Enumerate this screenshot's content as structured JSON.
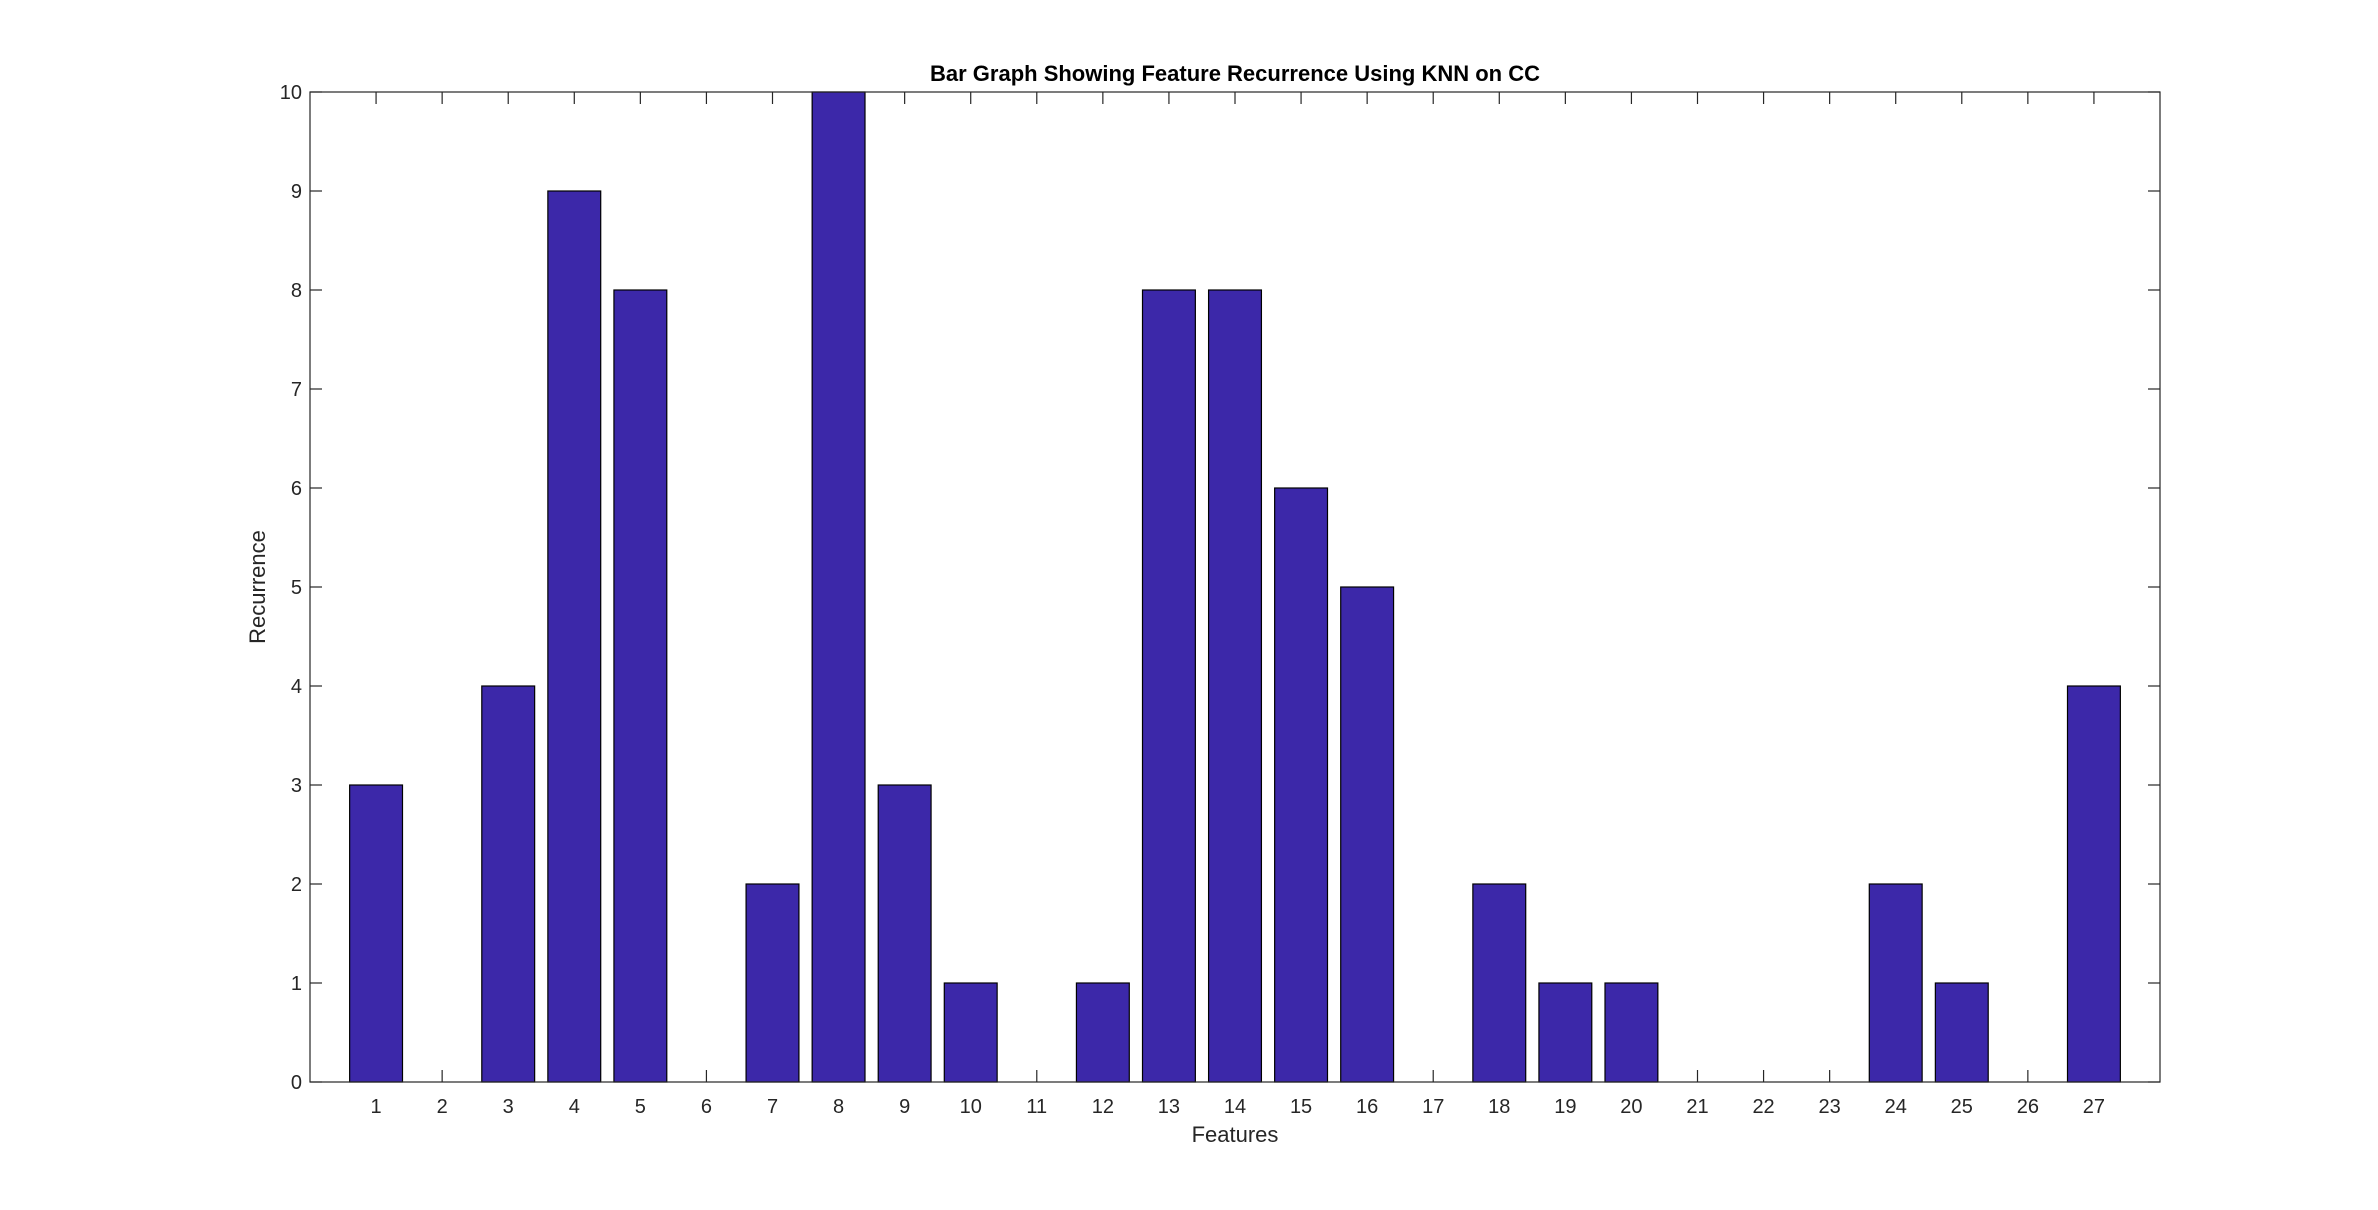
{
  "chart_data": {
    "type": "bar",
    "title": "Bar Graph Showing Feature Recurrence Using KNN on CC",
    "xlabel": "Features",
    "ylabel": "Recurrence",
    "categories": [
      "1",
      "2",
      "3",
      "4",
      "5",
      "6",
      "7",
      "8",
      "9",
      "10",
      "11",
      "12",
      "13",
      "14",
      "15",
      "16",
      "17",
      "18",
      "19",
      "20",
      "21",
      "22",
      "23",
      "24",
      "25",
      "26",
      "27"
    ],
    "values": [
      3,
      0,
      4,
      9,
      8,
      0,
      2,
      10,
      3,
      1,
      0,
      1,
      8,
      8,
      6,
      5,
      0,
      2,
      1,
      1,
      0,
      0,
      0,
      2,
      1,
      0,
      4
    ],
    "ylim": [
      0,
      10
    ],
    "yticks": [
      "0",
      "1",
      "2",
      "3",
      "4",
      "5",
      "6",
      "7",
      "8",
      "9",
      "10"
    ],
    "grid": false,
    "bar_color": "#3c28a9",
    "edge_color": "#000000"
  }
}
